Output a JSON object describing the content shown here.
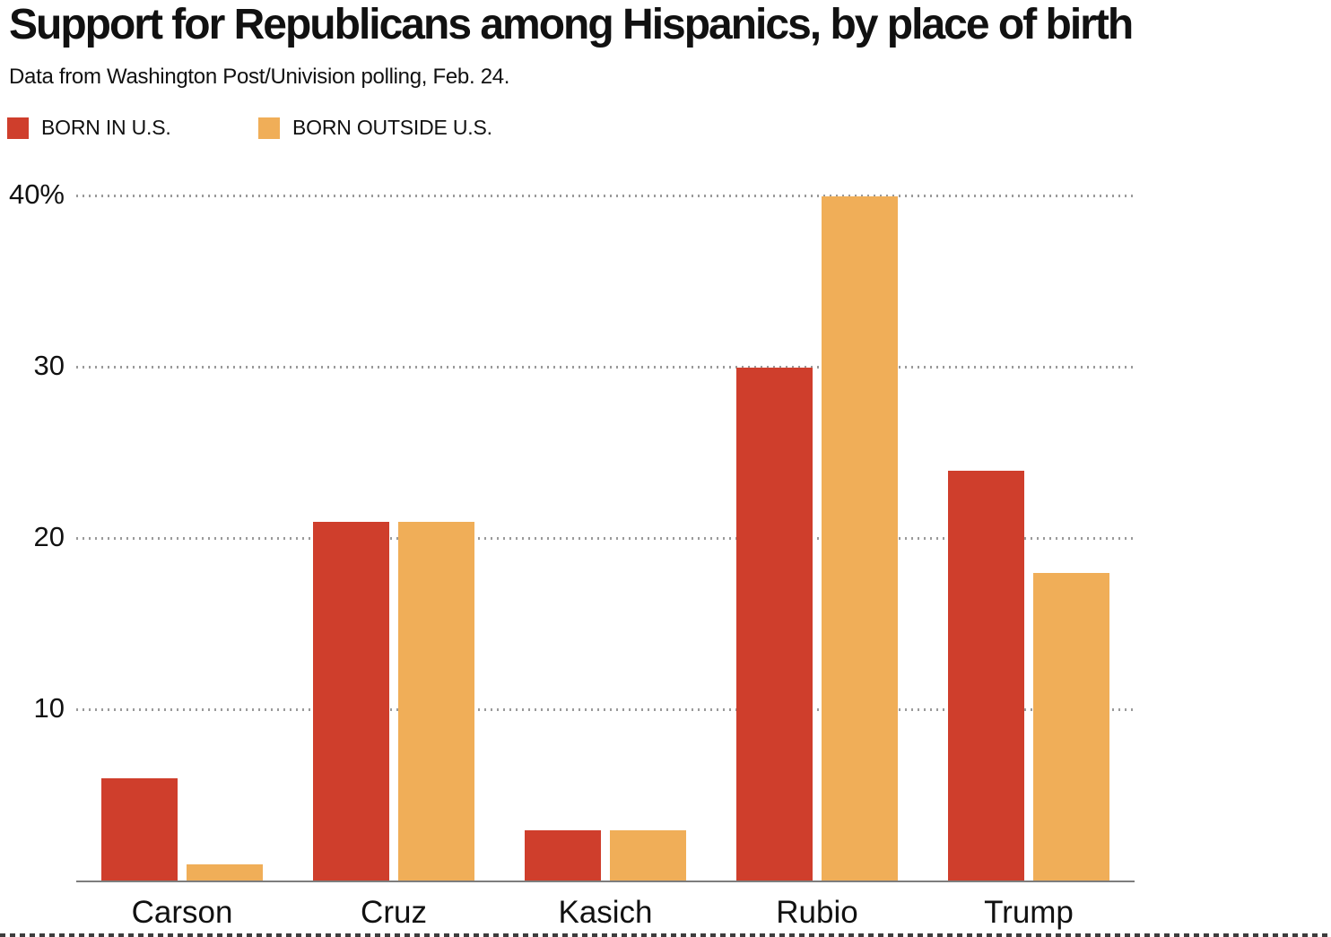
{
  "header": {
    "title": "Support for Republicans among Hispanics, by place of birth",
    "subtitle": "Data from Washington Post/Univision polling, Feb. 24."
  },
  "legend": {
    "items": [
      {
        "label": "BORN IN U.S.",
        "color": "#cf3e2c"
      },
      {
        "label": "BORN OUTSIDE U.S.",
        "color": "#f0ae58"
      }
    ]
  },
  "chart_data": {
    "type": "bar",
    "title": "Support for Republicans among Hispanics, by place of birth",
    "subtitle": "Data from Washington Post/Univision polling, Feb. 24.",
    "categories": [
      "Carson",
      "Cruz",
      "Kasich",
      "Rubio",
      "Trump"
    ],
    "series": [
      {
        "name": "BORN IN U.S.",
        "color": "#cf3e2c",
        "values": [
          6,
          21,
          3,
          30,
          24
        ]
      },
      {
        "name": "BORN OUTSIDE U.S.",
        "color": "#f0ae58",
        "values": [
          1,
          21,
          3,
          40,
          18
        ]
      }
    ],
    "xlabel": "",
    "ylabel": "",
    "unit": "%",
    "ylim": [
      0,
      42
    ],
    "yticks": [
      {
        "value": 10,
        "label": "10"
      },
      {
        "value": 20,
        "label": "20"
      },
      {
        "value": 30,
        "label": "30"
      },
      {
        "value": 40,
        "label": "40%"
      }
    ],
    "grid": "horizontal-dotted",
    "legend_position": "top-left",
    "bar_colors": {
      "born_in_us": "#cf3e2c",
      "born_outside_us": "#f0ae58"
    }
  }
}
